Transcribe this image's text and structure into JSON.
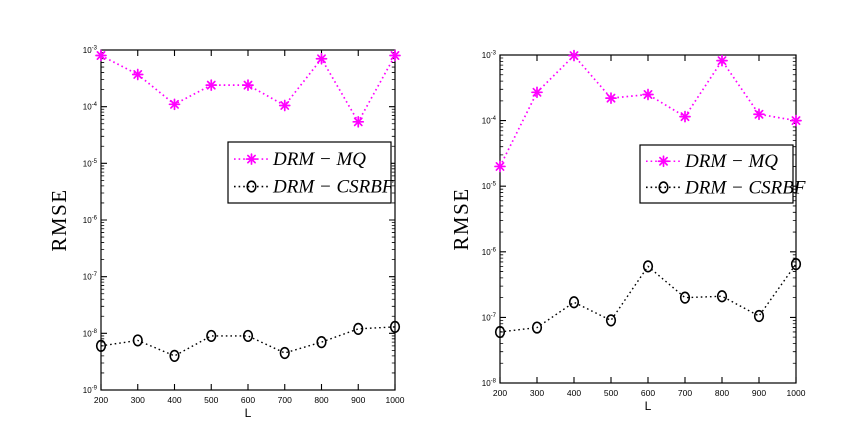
{
  "page": {
    "background": "#ffffff"
  },
  "chart_data": [
    {
      "id": "left-plot",
      "type": "line",
      "title": "",
      "xlabel": "L",
      "ylabel": "RMSE",
      "xlim": [
        200,
        1000
      ],
      "xticks": [
        200,
        300,
        400,
        500,
        600,
        700,
        800,
        900,
        1000
      ],
      "x": [
        200,
        300,
        400,
        500,
        600,
        700,
        800,
        900,
        1000
      ],
      "yscale": "log",
      "ylim": [
        1e-09,
        0.001
      ],
      "grid": false,
      "legend": {
        "position": "center-right",
        "border": true,
        "entries": [
          "DRM − MQ",
          "DRM − CSRBF"
        ]
      },
      "series": [
        {
          "name": "DRM − MQ",
          "color": "#ff00ff",
          "marker": "asterisk",
          "linestyle": "dotted",
          "values": [
            0.0008,
            0.00037,
            0.00011,
            0.00024,
            0.00024,
            0.000105,
            0.0007,
            5.4e-05,
            0.0008
          ]
        },
        {
          "name": "DRM − CSRBF",
          "color": "#000000",
          "marker": "circle",
          "linestyle": "dotted",
          "values": [
            6e-09,
            7.5e-09,
            4e-09,
            9e-09,
            9e-09,
            4.5e-09,
            7e-09,
            1.2e-08,
            1.3e-08
          ]
        }
      ]
    },
    {
      "id": "right-plot",
      "type": "line",
      "title": "",
      "xlabel": "L",
      "ylabel": "RMSE",
      "xlim": [
        200,
        1000
      ],
      "xticks": [
        200,
        300,
        400,
        500,
        600,
        700,
        800,
        900,
        1000
      ],
      "x": [
        200,
        300,
        400,
        500,
        600,
        700,
        800,
        900,
        1000
      ],
      "yscale": "log",
      "ylim": [
        1e-08,
        0.001
      ],
      "grid": false,
      "legend": {
        "position": "center-right",
        "border": true,
        "entries": [
          "DRM − MQ",
          "DRM − CSRBF"
        ]
      },
      "series": [
        {
          "name": "DRM − MQ",
          "color": "#ff00ff",
          "marker": "asterisk",
          "linestyle": "dotted",
          "values": [
            2e-05,
            0.00027,
            0.00098,
            0.00022,
            0.00025,
            0.000115,
            0.00082,
            0.000125,
            0.0001
          ]
        },
        {
          "name": "DRM − CSRBF",
          "color": "#000000",
          "marker": "circle",
          "linestyle": "dotted",
          "values": [
            6e-08,
            7e-08,
            1.7e-07,
            9e-08,
            6e-07,
            2e-07,
            2.1e-07,
            1.05e-07,
            6.5e-07
          ]
        }
      ]
    }
  ]
}
